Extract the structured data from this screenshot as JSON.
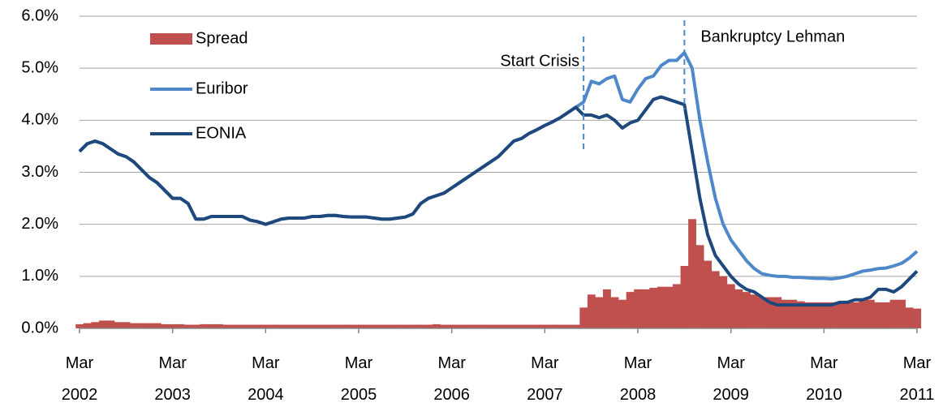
{
  "chart_data": {
    "type": "line",
    "x": [
      "2002-03",
      "2002-04",
      "2002-05",
      "2002-06",
      "2002-07",
      "2002-08",
      "2002-09",
      "2002-10",
      "2002-11",
      "2002-12",
      "2003-01",
      "2003-02",
      "2003-03",
      "2003-04",
      "2003-05",
      "2003-06",
      "2003-07",
      "2003-08",
      "2003-09",
      "2003-10",
      "2003-11",
      "2003-12",
      "2004-01",
      "2004-02",
      "2004-03",
      "2004-04",
      "2004-05",
      "2004-06",
      "2004-07",
      "2004-08",
      "2004-09",
      "2004-10",
      "2004-11",
      "2004-12",
      "2005-01",
      "2005-02",
      "2005-03",
      "2005-04",
      "2005-05",
      "2005-06",
      "2005-07",
      "2005-08",
      "2005-09",
      "2005-10",
      "2005-11",
      "2005-12",
      "2006-01",
      "2006-02",
      "2006-03",
      "2006-04",
      "2006-05",
      "2006-06",
      "2006-07",
      "2006-08",
      "2006-09",
      "2006-10",
      "2006-11",
      "2006-12",
      "2007-01",
      "2007-02",
      "2007-03",
      "2007-04",
      "2007-05",
      "2007-06",
      "2007-07",
      "2007-08",
      "2007-09",
      "2007-10",
      "2007-11",
      "2007-12",
      "2008-01",
      "2008-02",
      "2008-03",
      "2008-04",
      "2008-05",
      "2008-06",
      "2008-07",
      "2008-08",
      "2008-09",
      "2008-10",
      "2008-11",
      "2008-12",
      "2009-01",
      "2009-02",
      "2009-03",
      "2009-04",
      "2009-05",
      "2009-06",
      "2009-07",
      "2009-08",
      "2009-09",
      "2009-10",
      "2009-11",
      "2009-12",
      "2010-01",
      "2010-02",
      "2010-03",
      "2010-04",
      "2010-05",
      "2010-06",
      "2010-07",
      "2010-08",
      "2010-09",
      "2010-10",
      "2010-11",
      "2010-12",
      "2011-01",
      "2011-02",
      "2011-03"
    ],
    "series": [
      {
        "name": "Spread",
        "type": "bar",
        "color": "#c0504d",
        "values": [
          0.08,
          0.1,
          0.12,
          0.15,
          0.15,
          0.12,
          0.12,
          0.1,
          0.1,
          0.1,
          0.1,
          0.08,
          0.08,
          0.08,
          0.07,
          0.07,
          0.08,
          0.08,
          0.08,
          0.07,
          0.07,
          0.07,
          0.07,
          0.07,
          0.07,
          0.07,
          0.07,
          0.07,
          0.07,
          0.07,
          0.07,
          0.07,
          0.07,
          0.07,
          0.07,
          0.07,
          0.07,
          0.07,
          0.07,
          0.07,
          0.07,
          0.07,
          0.07,
          0.07,
          0.07,
          0.07,
          0.08,
          0.07,
          0.07,
          0.07,
          0.07,
          0.07,
          0.07,
          0.07,
          0.07,
          0.07,
          0.07,
          0.07,
          0.07,
          0.07,
          0.07,
          0.07,
          0.07,
          0.07,
          0.07,
          0.4,
          0.65,
          0.6,
          0.75,
          0.6,
          0.55,
          0.7,
          0.75,
          0.75,
          0.78,
          0.8,
          0.8,
          0.85,
          1.2,
          2.1,
          1.6,
          1.3,
          1.1,
          1.0,
          0.85,
          0.75,
          0.7,
          0.65,
          0.6,
          0.6,
          0.6,
          0.55,
          0.55,
          0.52,
          0.5,
          0.5,
          0.5,
          0.5,
          0.5,
          0.5,
          0.5,
          0.55,
          0.55,
          0.5,
          0.5,
          0.55,
          0.55,
          0.4,
          0.38
        ]
      },
      {
        "name": "Euribor",
        "type": "line",
        "color": "#4f88c9",
        "values": [
          3.4,
          3.55,
          3.6,
          3.55,
          3.45,
          3.35,
          3.3,
          3.2,
          3.05,
          2.9,
          2.8,
          2.65,
          2.5,
          2.5,
          2.4,
          2.1,
          2.1,
          2.15,
          2.15,
          2.15,
          2.15,
          2.15,
          2.08,
          2.05,
          2.0,
          2.05,
          2.1,
          2.12,
          2.12,
          2.12,
          2.15,
          2.15,
          2.17,
          2.17,
          2.15,
          2.14,
          2.14,
          2.14,
          2.12,
          2.1,
          2.1,
          2.12,
          2.14,
          2.2,
          2.4,
          2.5,
          2.55,
          2.6,
          2.7,
          2.8,
          2.9,
          3.0,
          3.1,
          3.2,
          3.3,
          3.45,
          3.6,
          3.65,
          3.75,
          3.82,
          3.9,
          3.97,
          4.05,
          4.15,
          4.25,
          4.35,
          4.75,
          4.7,
          4.8,
          4.85,
          4.4,
          4.35,
          4.6,
          4.8,
          4.85,
          5.05,
          5.15,
          5.15,
          5.3,
          5.0,
          4.0,
          3.2,
          2.5,
          2.0,
          1.7,
          1.5,
          1.3,
          1.15,
          1.05,
          1.02,
          1.0,
          1.0,
          0.98,
          0.98,
          0.97,
          0.96,
          0.96,
          0.95,
          0.97,
          1.0,
          1.05,
          1.1,
          1.12,
          1.15,
          1.16,
          1.2,
          1.25,
          1.35,
          1.48
        ]
      },
      {
        "name": "EONIA",
        "type": "line",
        "color": "#1f497d",
        "values": [
          3.4,
          3.55,
          3.6,
          3.55,
          3.45,
          3.35,
          3.3,
          3.2,
          3.05,
          2.9,
          2.8,
          2.65,
          2.5,
          2.5,
          2.4,
          2.1,
          2.1,
          2.15,
          2.15,
          2.15,
          2.15,
          2.15,
          2.08,
          2.05,
          2.0,
          2.05,
          2.1,
          2.12,
          2.12,
          2.12,
          2.15,
          2.15,
          2.17,
          2.17,
          2.15,
          2.14,
          2.14,
          2.14,
          2.12,
          2.1,
          2.1,
          2.12,
          2.14,
          2.2,
          2.4,
          2.5,
          2.55,
          2.6,
          2.7,
          2.8,
          2.9,
          3.0,
          3.1,
          3.2,
          3.3,
          3.45,
          3.6,
          3.65,
          3.75,
          3.82,
          3.9,
          3.97,
          4.05,
          4.15,
          4.25,
          4.1,
          4.1,
          4.05,
          4.1,
          4.0,
          3.85,
          3.95,
          4.0,
          4.2,
          4.4,
          4.45,
          4.4,
          4.35,
          4.3,
          3.4,
          2.5,
          1.8,
          1.4,
          1.2,
          1.0,
          0.85,
          0.75,
          0.7,
          0.6,
          0.5,
          0.45,
          0.45,
          0.45,
          0.45,
          0.45,
          0.45,
          0.45,
          0.45,
          0.5,
          0.5,
          0.55,
          0.55,
          0.6,
          0.75,
          0.75,
          0.7,
          0.8,
          0.95,
          1.1
        ]
      }
    ],
    "xlim": [
      "2002-03",
      "2011-03"
    ],
    "xticks": [
      {
        "value": "2002-03",
        "label": "Mar 2002"
      },
      {
        "value": "2003-03",
        "label": "Mar 2003"
      },
      {
        "value": "2004-03",
        "label": "Mar 2004"
      },
      {
        "value": "2005-03",
        "label": "Mar 2005"
      },
      {
        "value": "2006-03",
        "label": "Mar 2006"
      },
      {
        "value": "2007-03",
        "label": "Mar 2007"
      },
      {
        "value": "2008-03",
        "label": "Mar 2008"
      },
      {
        "value": "2009-03",
        "label": "Mar 2009"
      },
      {
        "value": "2010-03",
        "label": "Mar 2010"
      },
      {
        "value": "2011-03",
        "label": "Mar 2011"
      }
    ],
    "ylim": [
      0,
      6
    ],
    "yticks": [
      {
        "value": 0,
        "label": "0.0%"
      },
      {
        "value": 1,
        "label": "1.0%"
      },
      {
        "value": 2,
        "label": "2.0%"
      },
      {
        "value": 3,
        "label": "3.0%"
      },
      {
        "value": 4,
        "label": "4.0%"
      },
      {
        "value": 5,
        "label": "5.0%"
      },
      {
        "value": 6,
        "label": "6.0%"
      }
    ],
    "grid": true,
    "legend": "upper left",
    "annotations": [
      {
        "text": "Start Crisis",
        "x": "2007-08"
      },
      {
        "text": "Bankruptcy Lehman",
        "x": "2008-09"
      }
    ]
  }
}
